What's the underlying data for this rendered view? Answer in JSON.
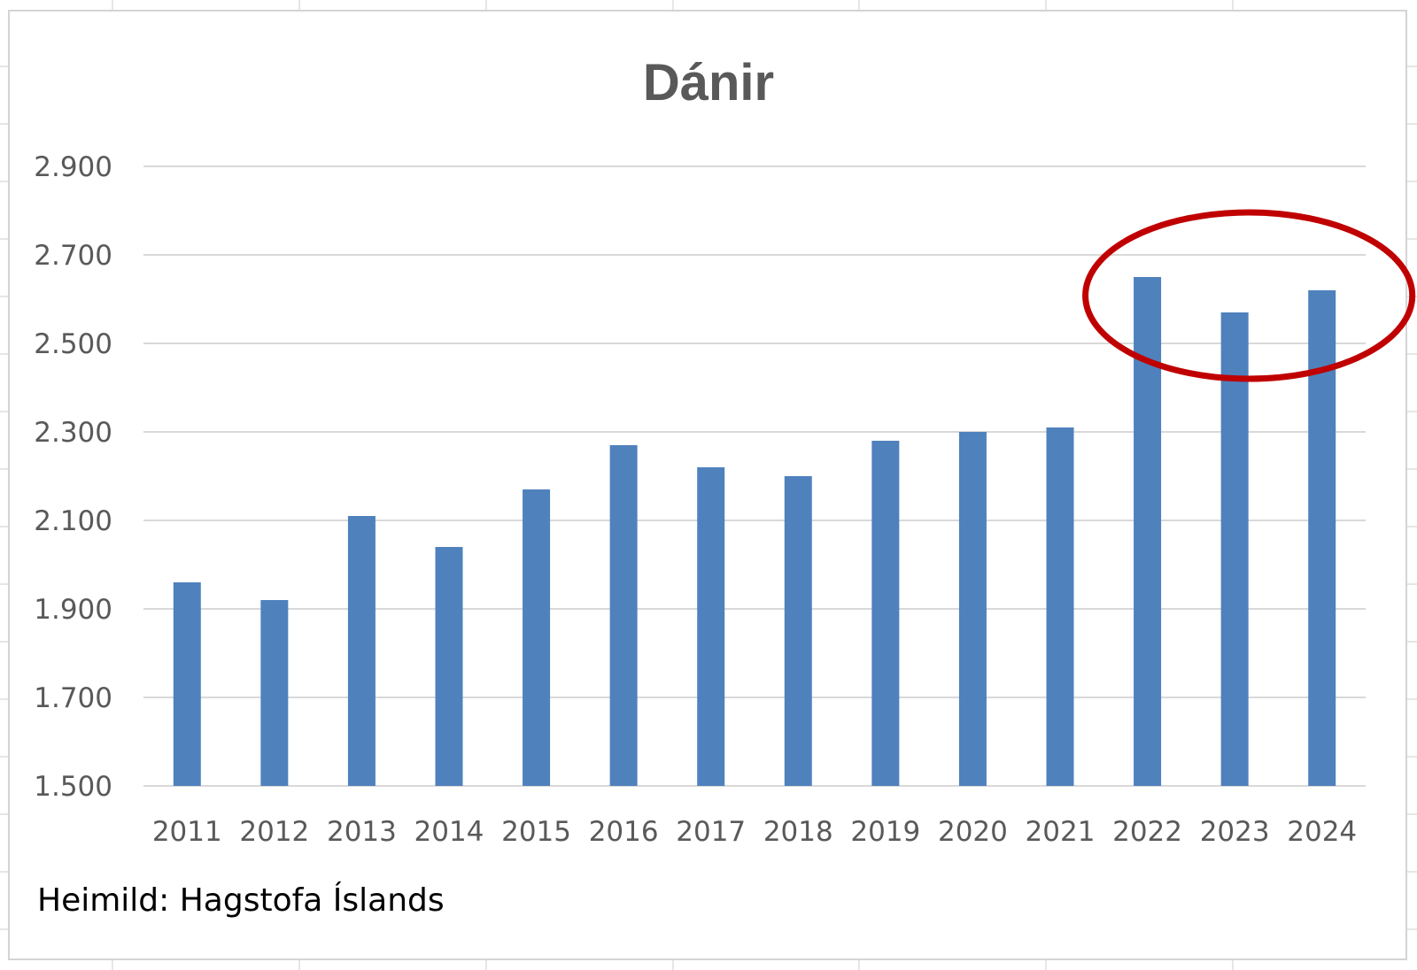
{
  "chart_data": {
    "type": "bar",
    "title": "Dánir",
    "categories": [
      "2011",
      "2012",
      "2013",
      "2014",
      "2015",
      "2016",
      "2017",
      "2018",
      "2019",
      "2020",
      "2021",
      "2022",
      "2023",
      "2024"
    ],
    "values": [
      1960,
      1920,
      2110,
      2040,
      2170,
      2270,
      2220,
      2200,
      2280,
      2300,
      2310,
      2650,
      2570,
      2620
    ],
    "ylim": [
      1500,
      2900
    ],
    "yticks": [
      1500,
      1700,
      1900,
      2100,
      2300,
      2500,
      2700,
      2900
    ],
    "ytick_labels": [
      "1.500",
      "1.700",
      "1.900",
      "2.100",
      "2.300",
      "2.500",
      "2.700",
      "2.900"
    ],
    "grid": true,
    "legend": "none",
    "annotation": {
      "type": "ellipse",
      "highlights": [
        "2022",
        "2023",
        "2024"
      ],
      "color": "#C00000"
    },
    "colors": {
      "bar": "#4F81BD",
      "grid": "#D9D9D9",
      "text": "#595959"
    }
  },
  "source": "Heimild: Hagstofa Íslands"
}
